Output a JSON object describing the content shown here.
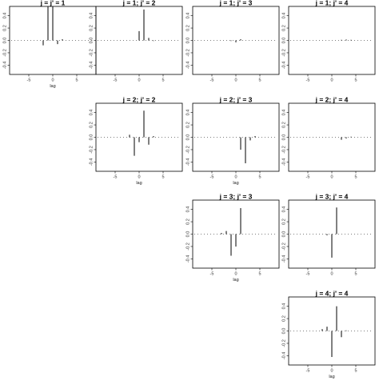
{
  "chart_data": {
    "type": "bar",
    "layout": "upper-triangular 4x4 grid of lag plots",
    "x_label": "lag",
    "x_ticks": [
      -5,
      0,
      5
    ],
    "xlim": [
      -9,
      9
    ],
    "y_ticks": [
      -0.4,
      -0.2,
      0.0,
      0.2,
      0.4
    ],
    "ylim": [
      -0.55,
      0.55
    ],
    "reference_line": "dotted horizontal at y = 0",
    "panels": [
      {
        "id": "p11",
        "title": "j = j' = 1",
        "row": 1,
        "col": 1,
        "show_xlabel": true,
        "lags": [
          -8,
          -7,
          -6,
          -5,
          -4,
          -3,
          -2,
          -1,
          0,
          1,
          2,
          3,
          4,
          5,
          6,
          7,
          8
        ],
        "values": [
          0,
          0,
          0,
          0,
          0,
          0,
          -0.08,
          0.55,
          0.55,
          -0.06,
          0.02,
          0,
          0,
          0,
          0,
          0,
          0
        ]
      },
      {
        "id": "p12",
        "title": "j = 1; j' = 2",
        "row": 1,
        "col": 2,
        "show_xlabel": false,
        "lags": [
          -8,
          -7,
          -6,
          -5,
          -4,
          -3,
          -2,
          -1,
          0,
          1,
          2,
          3,
          4,
          5,
          6,
          7,
          8
        ],
        "values": [
          0,
          0,
          0,
          0,
          0,
          0,
          0,
          0,
          0.15,
          0.5,
          0.04,
          -0.01,
          0,
          0,
          0,
          0,
          0
        ]
      },
      {
        "id": "p13",
        "title": "j = 1; j' = 3",
        "row": 1,
        "col": 3,
        "show_xlabel": false,
        "lags": [
          -8,
          -7,
          -6,
          -5,
          -4,
          -3,
          -2,
          -1,
          0,
          1,
          2,
          3,
          4,
          5,
          6,
          7,
          8
        ],
        "values": [
          0,
          0,
          0,
          0,
          0,
          0,
          0,
          -0.01,
          -0.03,
          0.02,
          0,
          0,
          0,
          0,
          0,
          0,
          0
        ]
      },
      {
        "id": "p14",
        "title": "j = 1; j' = 4",
        "row": 1,
        "col": 4,
        "show_xlabel": false,
        "lags": [
          -8,
          -7,
          -6,
          -5,
          -4,
          -3,
          -2,
          -1,
          0,
          1,
          2,
          3,
          4,
          5,
          6,
          7,
          8
        ],
        "values": [
          0,
          0,
          0,
          0,
          0,
          0,
          0,
          0,
          0,
          0,
          0.01,
          0.015,
          0.01,
          0,
          0,
          0,
          0
        ]
      },
      {
        "id": "p22",
        "title": "j = 2; j' = 2",
        "row": 2,
        "col": 2,
        "show_xlabel": true,
        "lags": [
          -8,
          -7,
          -6,
          -5,
          -4,
          -3,
          -2,
          -1,
          0,
          1,
          2,
          3,
          4,
          5,
          6,
          7,
          8
        ],
        "values": [
          0,
          0,
          0,
          0,
          0,
          0,
          0.04,
          -0.3,
          -0.08,
          0.43,
          -0.12,
          0.02,
          0,
          0,
          0,
          0,
          0
        ]
      },
      {
        "id": "p23",
        "title": "j = 2; j' = 3",
        "row": 2,
        "col": 3,
        "show_xlabel": true,
        "lags": [
          -8,
          -7,
          -6,
          -5,
          -4,
          -3,
          -2,
          -1,
          0,
          1,
          2,
          3,
          4,
          5,
          6,
          7,
          8
        ],
        "values": [
          0,
          0,
          0,
          0,
          0,
          0,
          0,
          0,
          0,
          -0.2,
          -0.42,
          -0.05,
          0.02,
          0,
          0,
          0,
          0
        ]
      },
      {
        "id": "p24",
        "title": "j = 2; j' = 4",
        "row": 2,
        "col": 4,
        "show_xlabel": false,
        "lags": [
          -8,
          -7,
          -6,
          -5,
          -4,
          -3,
          -2,
          -1,
          0,
          1,
          2,
          3,
          4,
          5,
          6,
          7,
          8
        ],
        "values": [
          0,
          0,
          0,
          0,
          0,
          0,
          0,
          0,
          0,
          0,
          -0.04,
          -0.02,
          0.01,
          0,
          0,
          0,
          0
        ]
      },
      {
        "id": "p33",
        "title": "j = 3; j' = 3",
        "row": 3,
        "col": 3,
        "show_xlabel": true,
        "lags": [
          -8,
          -7,
          -6,
          -5,
          -4,
          -3,
          -2,
          -1,
          0,
          1,
          2,
          3,
          4,
          5,
          6,
          7,
          8
        ],
        "values": [
          0,
          0,
          0,
          0,
          0,
          0.02,
          0.05,
          -0.35,
          -0.2,
          0.42,
          0,
          0,
          0,
          0,
          0,
          0,
          0
        ]
      },
      {
        "id": "p34",
        "title": "j = 3; j' = 4",
        "row": 3,
        "col": 4,
        "show_xlabel": false,
        "lags": [
          -8,
          -7,
          -6,
          -5,
          -4,
          -3,
          -2,
          -1,
          0,
          1,
          2,
          3,
          4,
          5,
          6,
          7,
          8
        ],
        "values": [
          0,
          0,
          0,
          0,
          0,
          0,
          0,
          -0.02,
          -0.38,
          0.43,
          0,
          0,
          0,
          0,
          0,
          0,
          0
        ]
      },
      {
        "id": "p44",
        "title": "j = 4; j' = 4",
        "row": 4,
        "col": 4,
        "show_xlabel": true,
        "lags": [
          -8,
          -7,
          -6,
          -5,
          -4,
          -3,
          -2,
          -1,
          0,
          1,
          2,
          3,
          4,
          5,
          6,
          7,
          8
        ],
        "values": [
          0,
          0,
          0,
          0,
          0,
          0,
          0.03,
          0.07,
          -0.42,
          0.4,
          -0.1,
          0.01,
          0,
          0,
          0,
          0,
          0
        ]
      }
    ]
  }
}
